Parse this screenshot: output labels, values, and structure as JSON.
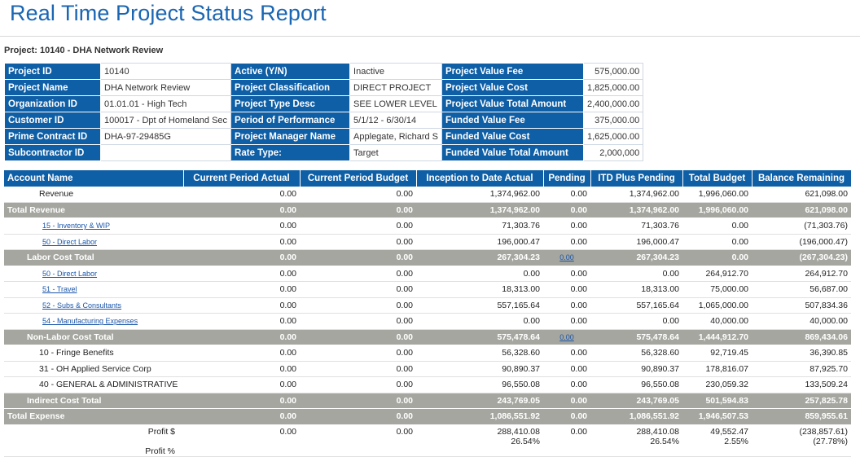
{
  "page": {
    "title": "Real Time Project Status Report",
    "subtitle": "Project: 10140 - DHA Network Review"
  },
  "info": {
    "rows": [
      [
        {
          "label": "Project ID",
          "value": "10140"
        },
        {
          "label": "Active (Y/N)",
          "value": "Inactive"
        },
        {
          "label": "Project Value Fee",
          "value": "575,000.00"
        }
      ],
      [
        {
          "label": "Project Name",
          "value": "DHA Network Review"
        },
        {
          "label": "Project Classification",
          "value": "DIRECT PROJECT"
        },
        {
          "label": "Project Value Cost",
          "value": "1,825,000.00"
        }
      ],
      [
        {
          "label": "Organization ID",
          "value": "01.01.01 - High Tech"
        },
        {
          "label": "Project Type Desc",
          "value": "SEE LOWER LEVEL"
        },
        {
          "label": "Project Value Total Amount",
          "value": "2,400,000.00"
        }
      ],
      [
        {
          "label": "Customer ID",
          "value": "100017 - Dpt of Homeland Sec"
        },
        {
          "label": "Period of Performance",
          "value": "5/1/12 - 6/30/14"
        },
        {
          "label": "Funded Value Fee",
          "value": "375,000.00"
        }
      ],
      [
        {
          "label": "Prime Contract ID",
          "value": "DHA-97-29485G"
        },
        {
          "label": "Project Manager Name",
          "value": "Applegate, Richard S"
        },
        {
          "label": "Funded Value Cost",
          "value": "1,625,000.00"
        }
      ],
      [
        {
          "label": "Subcontractor ID",
          "value": ""
        },
        {
          "label": "Rate Type:",
          "value": "Target"
        },
        {
          "label": "Funded Value Total Amount",
          "value": "2,000,000"
        }
      ]
    ]
  },
  "report": {
    "columns": [
      "Account Name",
      "Current Period Actual",
      "Current Period Budget",
      "Inception to Date Actual",
      "Pending",
      "ITD Plus Pending",
      "Total Budget",
      "Balance Remaining"
    ],
    "rows": [
      {
        "name": "Revenue",
        "type": "plain",
        "indent": 2,
        "cpa": "0.00",
        "cpb": "0.00",
        "itd": "1,374,962.00",
        "pend": "0.00",
        "itdp": "1,374,962.00",
        "tb": "1,996,060.00",
        "bal": "621,098.00"
      },
      {
        "name": "Total Revenue",
        "type": "total",
        "indent": 0,
        "cpa": "0.00",
        "cpb": "0.00",
        "itd": "1,374,962.00",
        "pend": "0.00",
        "itdp": "1,374,962.00",
        "tb": "1,996,060.00",
        "bal": "621,098.00"
      },
      {
        "name": "15 - Inventory & WIP",
        "type": "link",
        "indent": 3,
        "cpa": "0.00",
        "cpb": "0.00",
        "itd": "71,303.76",
        "pend": "0.00",
        "itdp": "71,303.76",
        "tb": "0.00",
        "bal": "(71,303.76)"
      },
      {
        "name": "50 - Direct Labor",
        "type": "link",
        "indent": 3,
        "cpa": "0.00",
        "cpb": "0.00",
        "itd": "196,000.47",
        "pend": "0.00",
        "itdp": "196,000.47",
        "tb": "0.00",
        "bal": "(196,000.47)"
      },
      {
        "name": "Labor Cost Total",
        "type": "total",
        "indent": 1,
        "cpa": "0.00",
        "cpb": "0.00",
        "itd": "267,304.23",
        "pend": "0.00",
        "pendLink": true,
        "itdp": "267,304.23",
        "tb": "0.00",
        "bal": "(267,304.23)"
      },
      {
        "name": "50 - Direct Labor",
        "type": "link",
        "indent": 3,
        "cpa": "0.00",
        "cpb": "0.00",
        "itd": "0.00",
        "pend": "0.00",
        "itdp": "0.00",
        "tb": "264,912.70",
        "bal": "264,912.70"
      },
      {
        "name": "51 - Travel",
        "type": "link",
        "indent": 3,
        "cpa": "0.00",
        "cpb": "0.00",
        "itd": "18,313.00",
        "pend": "0.00",
        "itdp": "18,313.00",
        "tb": "75,000.00",
        "bal": "56,687.00"
      },
      {
        "name": "52 - Subs & Consultants",
        "type": "link",
        "indent": 3,
        "cpa": "0.00",
        "cpb": "0.00",
        "itd": "557,165.64",
        "pend": "0.00",
        "itdp": "557,165.64",
        "tb": "1,065,000.00",
        "bal": "507,834.36"
      },
      {
        "name": "54 - Manufacturing Expenses",
        "type": "link",
        "indent": 3,
        "cpa": "0.00",
        "cpb": "0.00",
        "itd": "0.00",
        "pend": "0.00",
        "itdp": "0.00",
        "tb": "40,000.00",
        "bal": "40,000.00"
      },
      {
        "name": "Non-Labor Cost Total",
        "type": "total",
        "indent": 1,
        "cpa": "0.00",
        "cpb": "0.00",
        "itd": "575,478.64",
        "pend": "0.00",
        "pendLink": true,
        "itdp": "575,478.64",
        "tb": "1,444,912.70",
        "bal": "869,434.06"
      },
      {
        "name": "10 - Fringe Benefits",
        "type": "plain",
        "indent": 2,
        "cpa": "0.00",
        "cpb": "0.00",
        "itd": "56,328.60",
        "pend": "0.00",
        "itdp": "56,328.60",
        "tb": "92,719.45",
        "bal": "36,390.85"
      },
      {
        "name": "31 - OH Applied Service Corp",
        "type": "plain",
        "indent": 2,
        "cpa": "0.00",
        "cpb": "0.00",
        "itd": "90,890.37",
        "pend": "0.00",
        "itdp": "90,890.37",
        "tb": "178,816.07",
        "bal": "87,925.70"
      },
      {
        "name": "40 - GENERAL & ADMINISTRATIVE",
        "type": "plain",
        "indent": 2,
        "cpa": "0.00",
        "cpb": "0.00",
        "itd": "96,550.08",
        "pend": "0.00",
        "itdp": "96,550.08",
        "tb": "230,059.32",
        "bal": "133,509.24"
      },
      {
        "name": "Indirect Cost Total",
        "type": "total",
        "indent": 1,
        "cpa": "0.00",
        "cpb": "0.00",
        "itd": "243,769.05",
        "pend": "0.00",
        "itdp": "243,769.05",
        "tb": "501,594.83",
        "bal": "257,825.78"
      },
      {
        "name": "Total Expense",
        "type": "total",
        "indent": 0,
        "cpa": "0.00",
        "cpb": "0.00",
        "itd": "1,086,551.92",
        "pend": "0.00",
        "itdp": "1,086,551.92",
        "tb": "1,946,507.53",
        "bal": "859,955.61"
      }
    ],
    "profit": {
      "label1": "Profit $",
      "label2": "Profit %",
      "cpa": "0.00",
      "cpb": "0.00",
      "itd1": "288,410.08",
      "itd2": "26.54%",
      "pend": "0.00",
      "itdp1": "288,410.08",
      "itdp2": "26.54%",
      "tb1": "49,552.47",
      "tb2": "2.55%",
      "bal1": "(238,857.61)",
      "bal2": "(27.78%)"
    }
  }
}
